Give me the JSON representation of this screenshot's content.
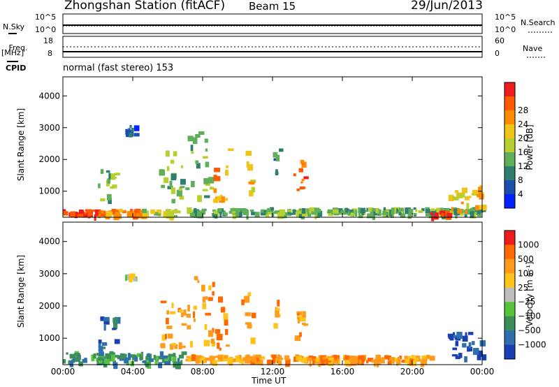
{
  "header": {
    "title": "Zhongshan Station (fitACF)",
    "beam": "Beam 15",
    "date": "29/Jun/2013"
  },
  "status_panels": {
    "nsky": {
      "label": "N.Sky",
      "ticks": [
        "10^5",
        "10^0"
      ]
    },
    "nsearch": {
      "label": "N.Search",
      "ticks": [
        "10^5",
        "10^0"
      ]
    },
    "freq": {
      "label_line1": "Freq.",
      "label_line2": "[MHz]",
      "ticks": [
        "18",
        "8"
      ]
    },
    "nave": {
      "label": "Nave",
      "ticks": [
        "60",
        "0"
      ]
    },
    "cpid": {
      "label": "CPID",
      "value": "normal (fast stereo) 153"
    }
  },
  "chart_data": [
    {
      "type": "heatmap",
      "name": "Power",
      "xlabel": "Time UT",
      "ylabel": "Slant Range [km]",
      "x_ticks": [
        "00:00",
        "04:00",
        "08:00",
        "12:00",
        "16:00",
        "20:00",
        "00:00"
      ],
      "xlim_hours": [
        0,
        24
      ],
      "ylim": [
        180,
        4600
      ],
      "y_ticks": [
        1000,
        2000,
        3000,
        4000
      ],
      "colorbar": {
        "label": "Power [dB]",
        "ticks": [
          "4",
          "8",
          "12",
          "16",
          "20",
          "24",
          "28"
        ],
        "colors": [
          "#0022ff",
          "#1a4fb0",
          "#2f7f6f",
          "#5fae5a",
          "#b8d02f",
          "#f0c419",
          "#ff8c00",
          "#ff5a00",
          "#ee1c1c"
        ]
      },
      "echo_regions": [
        {
          "t": [
            0.0,
            2.0
          ],
          "r": [
            250,
            450
          ],
          "level": 8
        },
        {
          "t": [
            2.0,
            4.5
          ],
          "r": [
            250,
            450
          ],
          "level": 6
        },
        {
          "t": [
            4.5,
            6.5
          ],
          "r": [
            250,
            450
          ],
          "level": 4
        },
        {
          "t": [
            7.0,
            24.0
          ],
          "r": [
            300,
            500
          ],
          "level": 3
        },
        {
          "t": [
            2.0,
            3.0
          ],
          "r": [
            700,
            1700
          ],
          "level": 3
        },
        {
          "t": [
            3.5,
            4.2
          ],
          "r": [
            2800,
            3100
          ],
          "level": 1
        },
        {
          "t": [
            5.5,
            7.0
          ],
          "r": [
            700,
            2300
          ],
          "level": 3
        },
        {
          "t": [
            7.0,
            8.5
          ],
          "r": [
            700,
            3000
          ],
          "level": 3
        },
        {
          "t": [
            8.5,
            9.5
          ],
          "r": [
            700,
            2400
          ],
          "level": 6
        },
        {
          "t": [
            10.2,
            10.8
          ],
          "r": [
            1000,
            2500
          ],
          "level": 5
        },
        {
          "t": [
            12.0,
            12.4
          ],
          "r": [
            1400,
            2400
          ],
          "level": 2
        },
        {
          "t": [
            13.0,
            13.8
          ],
          "r": [
            1000,
            2000
          ],
          "level": 7
        },
        {
          "t": [
            21.0,
            22.0
          ],
          "r": [
            200,
            450
          ],
          "level": 8
        },
        {
          "t": [
            22.0,
            24.0
          ],
          "r": [
            400,
            1200
          ],
          "level": 5
        }
      ]
    },
    {
      "type": "heatmap",
      "name": "Velocity",
      "xlabel": "Time UT",
      "ylabel": "Slant Range [km]",
      "x_ticks": [
        "00:00",
        "04:00",
        "08:00",
        "12:00",
        "16:00",
        "20:00",
        "00:00"
      ],
      "xlim_hours": [
        0,
        24
      ],
      "ylim": [
        180,
        4600
      ],
      "y_ticks": [
        1000,
        2000,
        3000,
        4000
      ],
      "colorbar": {
        "label": "Velocity [m s⁻¹]",
        "ticks": [
          "1000",
          "500",
          "100",
          "25",
          "−25",
          "−100",
          "−500",
          "−1000"
        ],
        "colors": [
          "#1a3fb0",
          "#2f6fb0",
          "#3c8f5a",
          "#55c43a",
          "#bebebe",
          "#ffc419",
          "#ff9a1a",
          "#ff6a00",
          "#ee1c1c"
        ]
      },
      "echo_regions": [
        {
          "t": [
            0.0,
            7.0
          ],
          "r": [
            250,
            600
          ],
          "level": 2
        },
        {
          "t": [
            2.0,
            3.0
          ],
          "r": [
            700,
            1700
          ],
          "level": 1
        },
        {
          "t": [
            3.5,
            4.2
          ],
          "r": [
            2800,
            3100
          ],
          "level": 4
        },
        {
          "t": [
            5.5,
            7.0
          ],
          "r": [
            700,
            2300
          ],
          "level": 6
        },
        {
          "t": [
            7.0,
            9.5
          ],
          "r": [
            700,
            3000
          ],
          "level": 6
        },
        {
          "t": [
            10.2,
            10.8
          ],
          "r": [
            1000,
            2500
          ],
          "level": 6
        },
        {
          "t": [
            12.0,
            12.4
          ],
          "r": [
            1400,
            2400
          ],
          "level": 6
        },
        {
          "t": [
            13.0,
            13.8
          ],
          "r": [
            1000,
            2000
          ],
          "level": 6
        },
        {
          "t": [
            7.0,
            21.0
          ],
          "r": [
            300,
            500
          ],
          "level": 6
        },
        {
          "t": [
            22.0,
            24.0
          ],
          "r": [
            400,
            1200
          ],
          "level": 0
        }
      ]
    }
  ]
}
